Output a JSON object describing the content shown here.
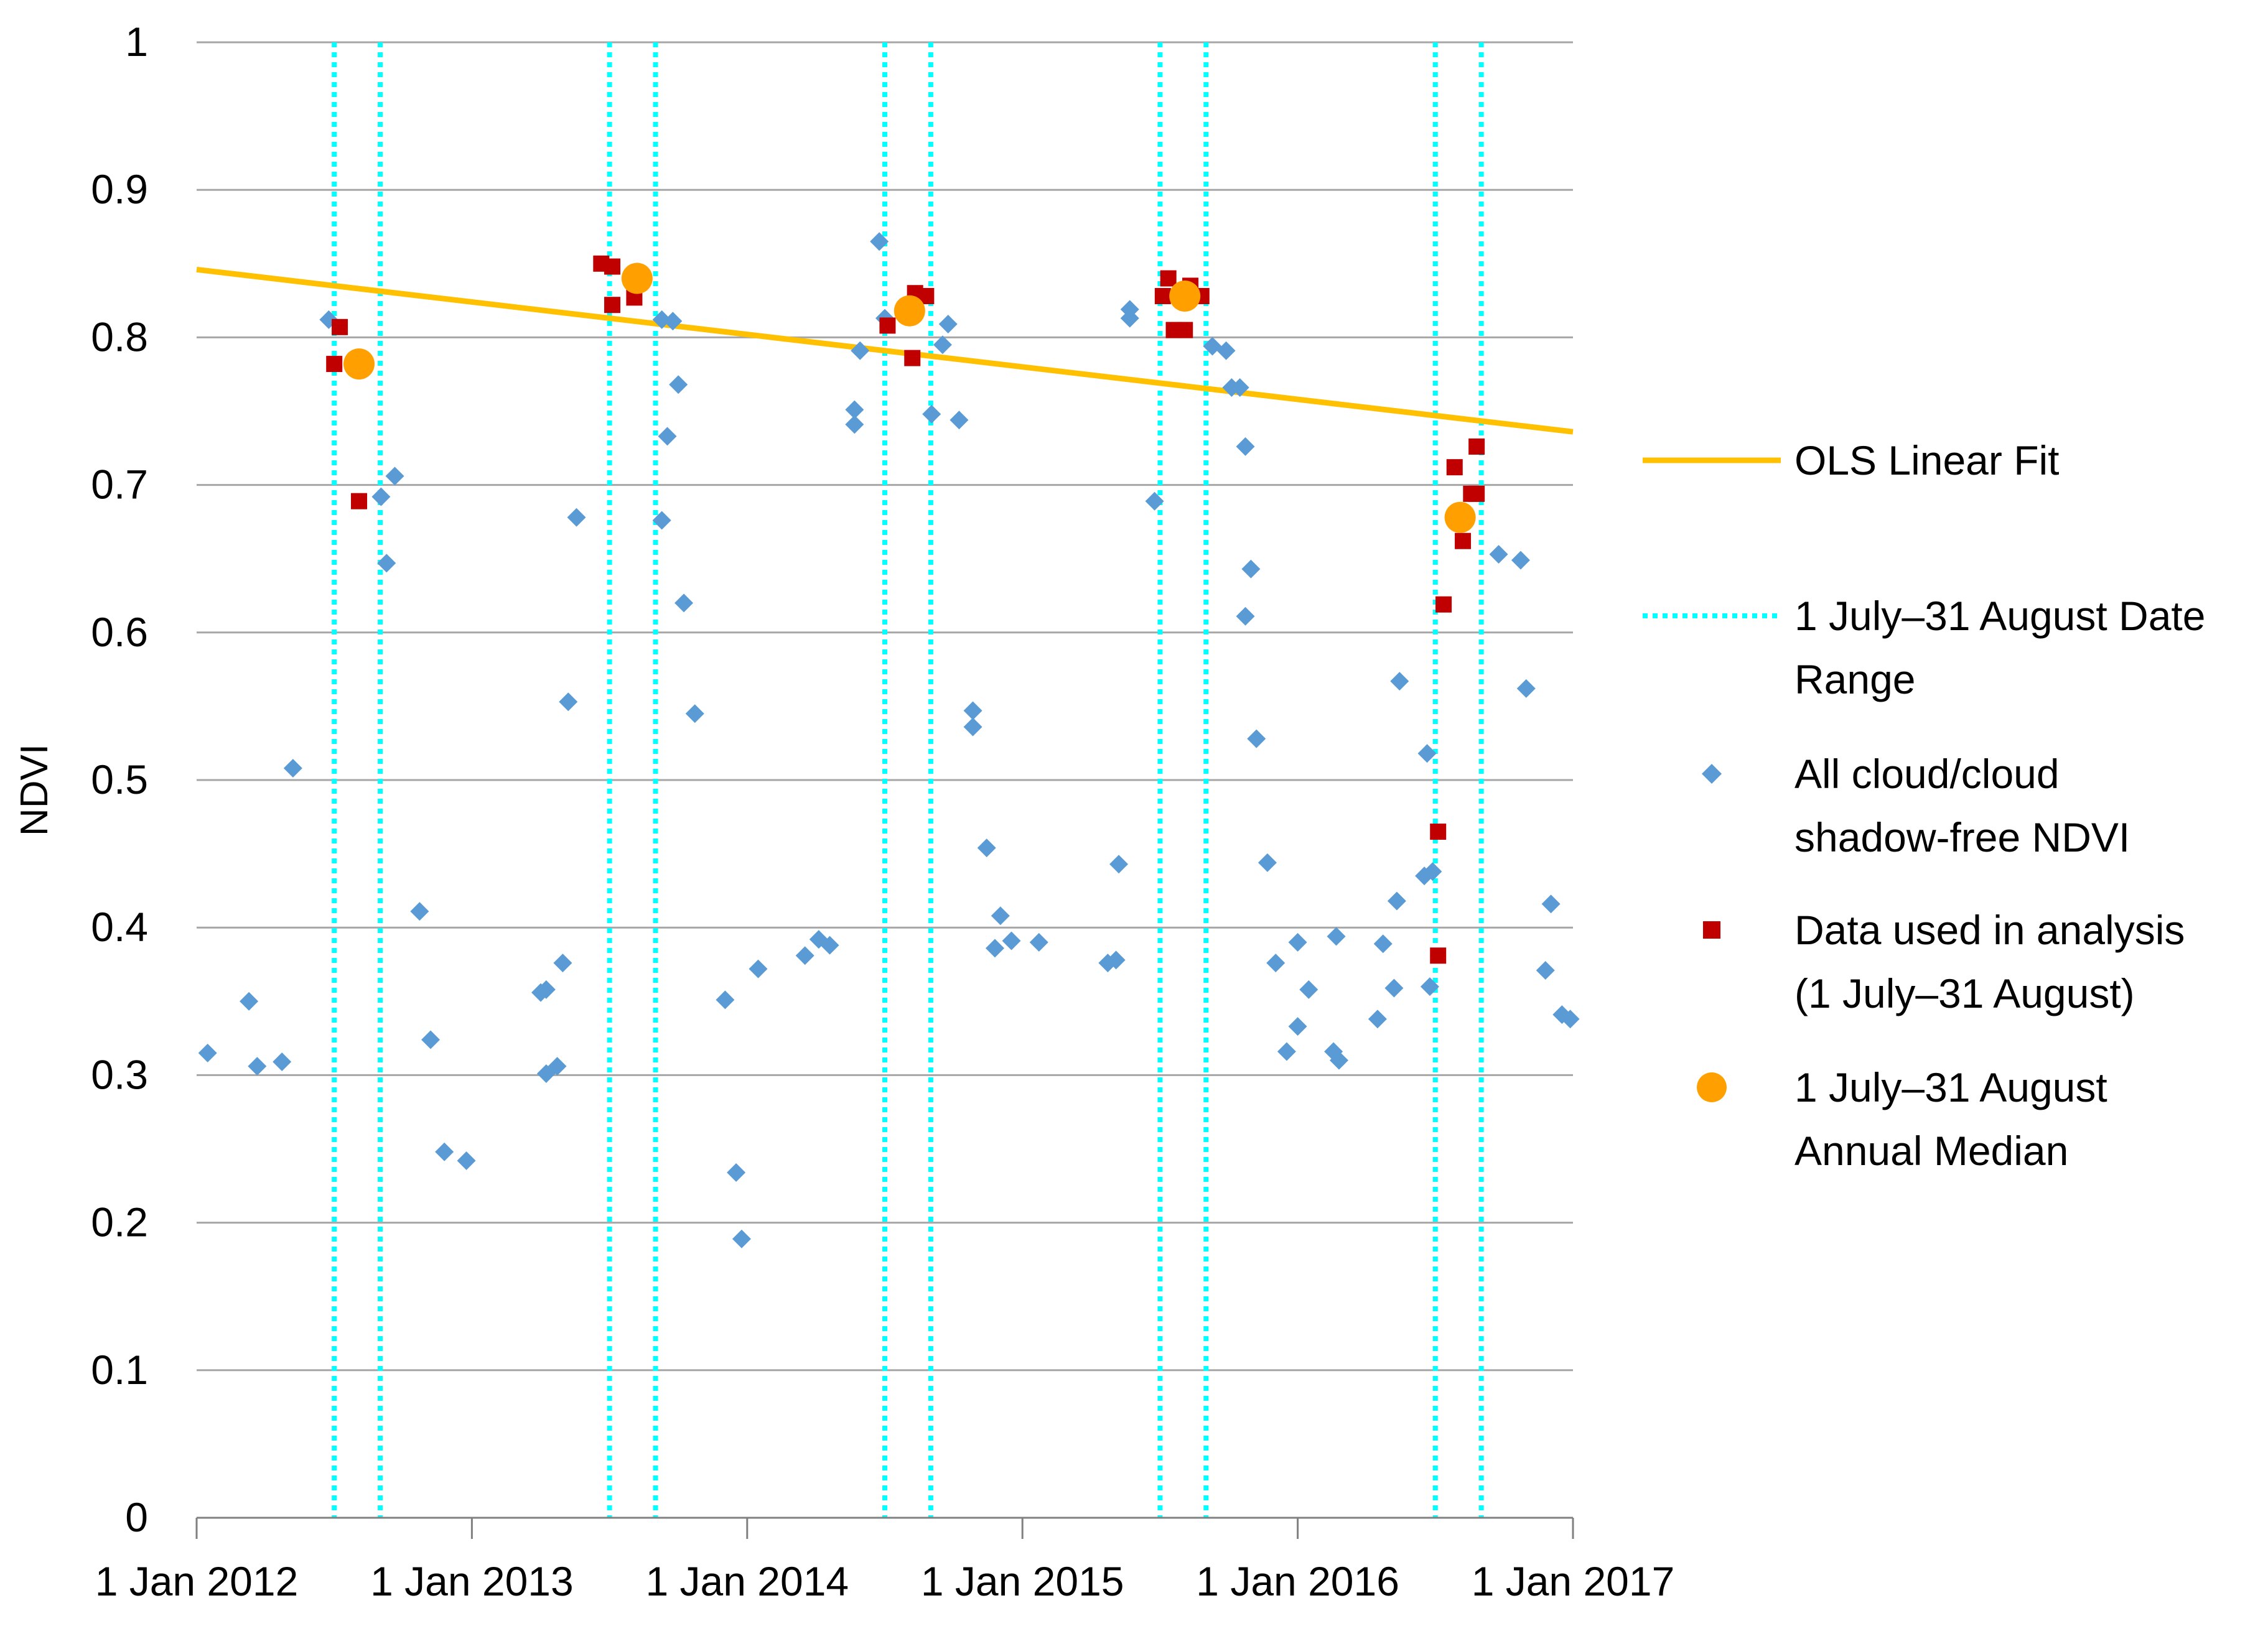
{
  "chart_data": {
    "type": "scatter",
    "title": "",
    "xlabel": "",
    "ylabel": "NDVI",
    "ylim": [
      0,
      1
    ],
    "yticks": [
      0,
      0.1,
      0.2,
      0.3,
      0.4,
      0.5,
      0.6,
      0.7,
      0.8,
      0.9,
      1
    ],
    "ytick_labels": [
      "0",
      "0.1",
      "0.2",
      "0.3",
      "0.4",
      "0.5",
      "0.6",
      "0.7",
      "0.8",
      "0.9",
      "1"
    ],
    "xlim": [
      2012.0,
      2017.0
    ],
    "xticks": [
      2012,
      2013,
      2014,
      2015,
      2016,
      2017
    ],
    "xtick_labels": [
      "1 Jan 2012",
      "1 Jan 2013",
      "1 Jan 2014",
      "1 Jan 2015",
      "1 Jan 2016",
      "1 Jan 2017"
    ],
    "grid": true,
    "legend_position": "right",
    "colors": {
      "fit": "#FFC000",
      "date_range": "#00FFFF",
      "all": "#5B9BD5",
      "used": "#C00000",
      "median": "#FFA000",
      "grid": "#A6A6A6",
      "axis": "#808080"
    },
    "legend": [
      {
        "key": "fit",
        "label": [
          "OLS Linear Fit"
        ]
      },
      {
        "key": "range",
        "label": [
          "1 July–31 August Date",
          "Range"
        ]
      },
      {
        "key": "all",
        "label": [
          "All cloud/cloud",
          "shadow-free NDVI"
        ]
      },
      {
        "key": "used",
        "label": [
          "Data used in analysis",
          "(1 July–31 August)"
        ]
      },
      {
        "key": "median",
        "label": [
          "1 July–31 August",
          "Annual Median"
        ]
      }
    ],
    "ols_fit": {
      "name": "OLS Linear Fit",
      "x": [
        2012.0,
        2017.0
      ],
      "y": [
        0.846,
        0.736
      ]
    },
    "date_range_lines": {
      "name": "1 July–31 August Date Range",
      "x": [
        2012.5,
        2012.667,
        2013.5,
        2013.667,
        2014.5,
        2014.667,
        2015.5,
        2015.667,
        2016.5,
        2016.667
      ]
    },
    "series": [
      {
        "name": "All cloud/cloud shadow-free NDVI",
        "marker": "diamond",
        "points": [
          [
            2012.04,
            0.315
          ],
          [
            2012.19,
            0.35
          ],
          [
            2012.22,
            0.306
          ],
          [
            2012.31,
            0.309
          ],
          [
            2012.35,
            0.508
          ],
          [
            2012.48,
            0.812
          ],
          [
            2012.67,
            0.692
          ],
          [
            2012.69,
            0.647
          ],
          [
            2012.72,
            0.706
          ],
          [
            2012.81,
            0.411
          ],
          [
            2012.85,
            0.324
          ],
          [
            2012.9,
            0.248
          ],
          [
            2012.98,
            0.242
          ],
          [
            2013.25,
            0.356
          ],
          [
            2013.27,
            0.358
          ],
          [
            2013.27,
            0.301
          ],
          [
            2013.31,
            0.306
          ],
          [
            2013.33,
            0.376
          ],
          [
            2013.35,
            0.553
          ],
          [
            2013.38,
            0.678
          ],
          [
            2013.69,
            0.812
          ],
          [
            2013.71,
            0.733
          ],
          [
            2013.69,
            0.676
          ],
          [
            2013.73,
            0.811
          ],
          [
            2013.75,
            0.768
          ],
          [
            2013.77,
            0.62
          ],
          [
            2013.81,
            0.545
          ],
          [
            2013.92,
            0.351
          ],
          [
            2013.96,
            0.234
          ],
          [
            2013.98,
            0.189
          ],
          [
            2014.04,
            0.372
          ],
          [
            2014.21,
            0.381
          ],
          [
            2014.26,
            0.392
          ],
          [
            2014.3,
            0.388
          ],
          [
            2014.39,
            0.741
          ],
          [
            2014.39,
            0.751
          ],
          [
            2014.41,
            0.791
          ],
          [
            2014.48,
            0.865
          ],
          [
            2014.5,
            0.813
          ],
          [
            2014.67,
            0.748
          ],
          [
            2014.71,
            0.795
          ],
          [
            2014.73,
            0.809
          ],
          [
            2014.77,
            0.744
          ],
          [
            2014.82,
            0.536
          ],
          [
            2014.82,
            0.547
          ],
          [
            2014.87,
            0.454
          ],
          [
            2014.9,
            0.386
          ],
          [
            2014.92,
            0.408
          ],
          [
            2014.96,
            0.391
          ],
          [
            2015.06,
            0.39
          ],
          [
            2015.31,
            0.376
          ],
          [
            2015.34,
            0.378
          ],
          [
            2015.35,
            0.443
          ],
          [
            2015.39,
            0.813
          ],
          [
            2015.39,
            0.819
          ],
          [
            2015.48,
            0.689
          ],
          [
            2015.69,
            0.794
          ],
          [
            2015.74,
            0.791
          ],
          [
            2015.76,
            0.766
          ],
          [
            2015.79,
            0.766
          ],
          [
            2015.81,
            0.726
          ],
          [
            2015.81,
            0.611
          ],
          [
            2015.83,
            0.643
          ],
          [
            2015.85,
            0.528
          ],
          [
            2015.89,
            0.444
          ],
          [
            2015.92,
            0.376
          ],
          [
            2015.96,
            0.316
          ],
          [
            2016.0,
            0.333
          ],
          [
            2016.0,
            0.39
          ],
          [
            2016.04,
            0.358
          ],
          [
            2016.14,
            0.394
          ],
          [
            2016.13,
            0.316
          ],
          [
            2016.15,
            0.31
          ],
          [
            2016.29,
            0.338
          ],
          [
            2016.31,
            0.389
          ],
          [
            2016.35,
            0.359
          ],
          [
            2016.36,
            0.418
          ],
          [
            2016.37,
            0.567
          ],
          [
            2016.46,
            0.435
          ],
          [
            2016.47,
            0.518
          ],
          [
            2016.48,
            0.36
          ],
          [
            2016.49,
            0.438
          ],
          [
            2016.73,
            0.653
          ],
          [
            2016.81,
            0.649
          ],
          [
            2016.83,
            0.562
          ],
          [
            2016.9,
            0.371
          ],
          [
            2016.92,
            0.416
          ],
          [
            2016.96,
            0.341
          ],
          [
            2016.99,
            0.338
          ]
        ]
      },
      {
        "name": "Data used in analysis (1 July–31 August)",
        "marker": "square",
        "points": [
          [
            2012.5,
            0.782
          ],
          [
            2012.52,
            0.807
          ],
          [
            2012.59,
            0.689
          ],
          [
            2013.47,
            0.85
          ],
          [
            2013.51,
            0.848
          ],
          [
            2013.51,
            0.822
          ],
          [
            2013.59,
            0.827
          ],
          [
            2014.51,
            0.808
          ],
          [
            2014.6,
            0.786
          ],
          [
            2014.61,
            0.83
          ],
          [
            2014.65,
            0.828
          ],
          [
            2015.51,
            0.828
          ],
          [
            2015.53,
            0.84
          ],
          [
            2015.55,
            0.805
          ],
          [
            2015.59,
            0.805
          ],
          [
            2015.61,
            0.835
          ],
          [
            2015.65,
            0.828
          ],
          [
            2016.51,
            0.381
          ],
          [
            2016.51,
            0.465
          ],
          [
            2016.53,
            0.619
          ],
          [
            2016.57,
            0.712
          ],
          [
            2016.6,
            0.662
          ],
          [
            2016.63,
            0.694
          ],
          [
            2016.65,
            0.694
          ],
          [
            2016.65,
            0.726
          ]
        ]
      },
      {
        "name": "1 July–31 August Annual Median",
        "marker": "circle",
        "points": [
          [
            2012.59,
            0.782
          ],
          [
            2013.6,
            0.84
          ],
          [
            2014.59,
            0.818
          ],
          [
            2015.59,
            0.828
          ],
          [
            2016.59,
            0.678
          ]
        ]
      }
    ]
  }
}
